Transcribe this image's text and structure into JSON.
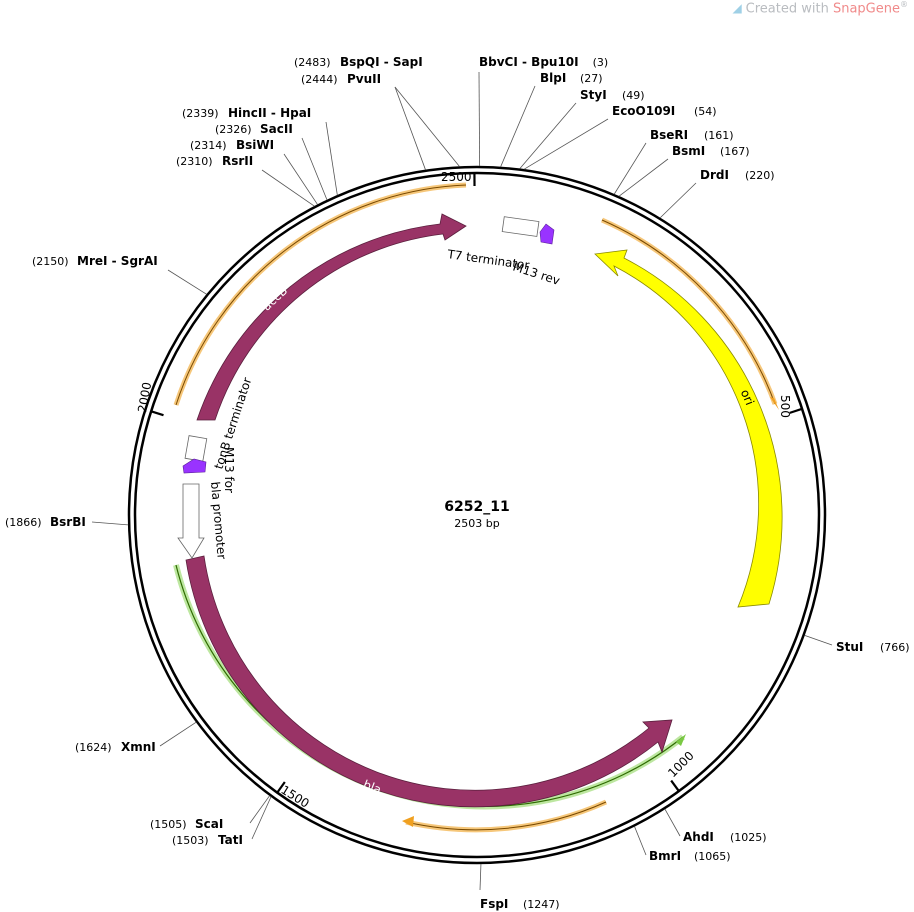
{
  "watermark": {
    "prefix": "Created with ",
    "brand": "SnapGene",
    "reg": "®"
  },
  "plasmid": {
    "name": "6252_11",
    "size_label": "2503 bp",
    "length": 2503
  },
  "ticks": [
    {
      "pos": 2500,
      "label": "2500"
    },
    {
      "pos": 500,
      "label": "500"
    },
    {
      "pos": 1000,
      "label": "1000"
    },
    {
      "pos": 1500,
      "label": "1500"
    },
    {
      "pos": 2000,
      "label": "2000"
    }
  ],
  "sites": [
    {
      "name": "BspQI",
      "name2": "SapI",
      "pos_label": "(2483)",
      "pos": 2483
    },
    {
      "name": "PvuII",
      "name2": "",
      "pos_label": "(2444)",
      "pos": 2444
    },
    {
      "name": "BbvCI",
      "name2": "Bpu10I",
      "pos_label": "(3)",
      "pos": 3
    },
    {
      "name": "BlpI",
      "name2": "",
      "pos_label": "(27)",
      "pos": 27
    },
    {
      "name": "StyI",
      "name2": "",
      "pos_label": "(49)",
      "pos": 49
    },
    {
      "name": "EcoO109I",
      "name2": "",
      "pos_label": "(54)",
      "pos": 54
    },
    {
      "name": "BseRI",
      "name2": "",
      "pos_label": "(161)",
      "pos": 161
    },
    {
      "name": "BsmI",
      "name2": "",
      "pos_label": "(167)",
      "pos": 167
    },
    {
      "name": "DrdI",
      "name2": "",
      "pos_label": "(220)",
      "pos": 220
    },
    {
      "name": "HincII",
      "name2": "HpaI",
      "pos_label": "(2339)",
      "pos": 2339
    },
    {
      "name": "SacII",
      "name2": "",
      "pos_label": "(2326)",
      "pos": 2326
    },
    {
      "name": "BsiWI",
      "name2": "",
      "pos_label": "(2314)",
      "pos": 2314
    },
    {
      "name": "RsrII",
      "name2": "",
      "pos_label": "(2310)",
      "pos": 2310
    },
    {
      "name": "MreI",
      "name2": "SgrAI",
      "pos_label": "(2150)",
      "pos": 2150
    },
    {
      "name": "BsrBI",
      "name2": "",
      "pos_label": "(1866)",
      "pos": 1866
    },
    {
      "name": "StuI",
      "name2": "",
      "pos_label": "(766)",
      "pos": 766
    },
    {
      "name": "XmnI",
      "name2": "",
      "pos_label": "(1624)",
      "pos": 1624
    },
    {
      "name": "AhdI",
      "name2": "",
      "pos_label": "(1025)",
      "pos": 1025
    },
    {
      "name": "BmrI",
      "name2": "",
      "pos_label": "(1065)",
      "pos": 1065
    },
    {
      "name": "ScaI",
      "name2": "",
      "pos_label": "(1505)",
      "pos": 1505
    },
    {
      "name": "TatI",
      "name2": "",
      "pos_label": "(1503)",
      "pos": 1503
    },
    {
      "name": "FspI",
      "name2": "",
      "pos_label": "(1247)",
      "pos": 1247
    }
  ],
  "features": [
    {
      "name": "accB",
      "type": "CDS",
      "color": "#993366"
    },
    {
      "name": "bla",
      "type": "CDS",
      "color": "#993366"
    },
    {
      "name": "ori",
      "type": "rep_origin",
      "color": "#ffff00"
    },
    {
      "name": "T7 terminator",
      "type": "terminator",
      "color": "#ffffff"
    },
    {
      "name": "M13 rev",
      "type": "primer_bind",
      "color": "#9933ff"
    },
    {
      "name": "tonB terminator",
      "type": "terminator",
      "color": "#ffffff"
    },
    {
      "name": "M13 for",
      "type": "primer_bind",
      "color": "#9933ff"
    },
    {
      "name": "bla promoter",
      "type": "promoter",
      "color": "#ffffff"
    }
  ],
  "colors": {
    "orf_orange": "#f0a020",
    "orf_green": "#7ac943",
    "backbone": "#000000"
  }
}
